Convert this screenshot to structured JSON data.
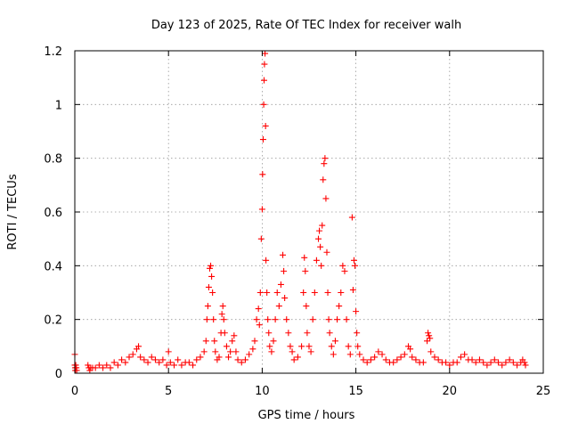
{
  "chart_data": {
    "type": "scatter",
    "title": "Day 123 of 2025, Rate Of TEC Index for receiver walh",
    "xlabel": "GPS time / hours",
    "ylabel": "ROTI / TECUs",
    "xlim": [
      0,
      25
    ],
    "ylim": [
      0,
      1.2
    ],
    "x_ticks": [
      0,
      5,
      10,
      15,
      20,
      25
    ],
    "x_tick_labels": [
      "0",
      "5",
      "10",
      "15",
      "20",
      "25"
    ],
    "y_ticks": [
      0,
      0.2,
      0.4,
      0.6,
      0.8,
      1.0,
      1.2
    ],
    "y_tick_labels": [
      "0",
      "0.2",
      "0.4",
      "0.6",
      "0.8",
      "1",
      "1.2"
    ],
    "grid": true,
    "grid_style": "dotted",
    "marker": "plus",
    "series": [
      {
        "color": "#ff0000",
        "points": [
          [
            0.0,
            0.07
          ],
          [
            0.0,
            0.03
          ],
          [
            0.02,
            0.02
          ],
          [
            0.03,
            0.01
          ],
          [
            0.05,
            0.02
          ],
          [
            0.05,
            0.03
          ],
          [
            0.08,
            0.02
          ],
          [
            0.1,
            0.01
          ],
          [
            0.7,
            0.03
          ],
          [
            0.75,
            0.02
          ],
          [
            0.8,
            0.01
          ],
          [
            0.85,
            0.02
          ],
          [
            0.95,
            0.02
          ],
          [
            1.1,
            0.02
          ],
          [
            1.3,
            0.03
          ],
          [
            1.5,
            0.02
          ],
          [
            1.7,
            0.03
          ],
          [
            1.9,
            0.02
          ],
          [
            2.1,
            0.04
          ],
          [
            2.3,
            0.03
          ],
          [
            2.5,
            0.05
          ],
          [
            2.7,
            0.04
          ],
          [
            2.9,
            0.06
          ],
          [
            3.1,
            0.07
          ],
          [
            3.3,
            0.09
          ],
          [
            3.4,
            0.1
          ],
          [
            3.5,
            0.06
          ],
          [
            3.7,
            0.05
          ],
          [
            3.9,
            0.04
          ],
          [
            4.1,
            0.06
          ],
          [
            4.3,
            0.05
          ],
          [
            4.5,
            0.04
          ],
          [
            4.7,
            0.05
          ],
          [
            4.9,
            0.03
          ],
          [
            5.0,
            0.08
          ],
          [
            5.1,
            0.04
          ],
          [
            5.3,
            0.03
          ],
          [
            5.5,
            0.05
          ],
          [
            5.7,
            0.03
          ],
          [
            5.9,
            0.04
          ],
          [
            6.1,
            0.04
          ],
          [
            6.3,
            0.03
          ],
          [
            6.5,
            0.05
          ],
          [
            6.7,
            0.06
          ],
          [
            6.9,
            0.08
          ],
          [
            7.0,
            0.12
          ],
          [
            7.05,
            0.2
          ],
          [
            7.1,
            0.25
          ],
          [
            7.15,
            0.32
          ],
          [
            7.2,
            0.39
          ],
          [
            7.25,
            0.4
          ],
          [
            7.3,
            0.36
          ],
          [
            7.35,
            0.3
          ],
          [
            7.4,
            0.2
          ],
          [
            7.45,
            0.12
          ],
          [
            7.5,
            0.08
          ],
          [
            7.6,
            0.05
          ],
          [
            7.7,
            0.06
          ],
          [
            7.8,
            0.15
          ],
          [
            7.85,
            0.22
          ],
          [
            7.9,
            0.25
          ],
          [
            7.95,
            0.2
          ],
          [
            8.0,
            0.15
          ],
          [
            8.1,
            0.1
          ],
          [
            8.2,
            0.06
          ],
          [
            8.3,
            0.08
          ],
          [
            8.4,
            0.12
          ],
          [
            8.5,
            0.14
          ],
          [
            8.6,
            0.08
          ],
          [
            8.7,
            0.05
          ],
          [
            8.9,
            0.04
          ],
          [
            9.1,
            0.05
          ],
          [
            9.3,
            0.07
          ],
          [
            9.5,
            0.09
          ],
          [
            9.6,
            0.12
          ],
          [
            9.7,
            0.2
          ],
          [
            9.8,
            0.24
          ],
          [
            9.85,
            0.18
          ],
          [
            9.9,
            0.3
          ],
          [
            9.95,
            0.5
          ],
          [
            10.0,
            0.61
          ],
          [
            10.02,
            0.74
          ],
          [
            10.05,
            0.87
          ],
          [
            10.08,
            1.0
          ],
          [
            10.1,
            1.09
          ],
          [
            10.12,
            1.15
          ],
          [
            10.15,
            1.19
          ],
          [
            10.18,
            0.92
          ],
          [
            10.2,
            0.42
          ],
          [
            10.25,
            0.3
          ],
          [
            10.3,
            0.2
          ],
          [
            10.35,
            0.15
          ],
          [
            10.4,
            0.1
          ],
          [
            10.5,
            0.08
          ],
          [
            10.6,
            0.12
          ],
          [
            10.7,
            0.2
          ],
          [
            10.8,
            0.3
          ],
          [
            10.9,
            0.25
          ],
          [
            11.0,
            0.33
          ],
          [
            11.1,
            0.44
          ],
          [
            11.15,
            0.38
          ],
          [
            11.2,
            0.28
          ],
          [
            11.3,
            0.2
          ],
          [
            11.4,
            0.15
          ],
          [
            11.5,
            0.1
          ],
          [
            11.6,
            0.08
          ],
          [
            11.7,
            0.05
          ],
          [
            11.9,
            0.06
          ],
          [
            12.1,
            0.1
          ],
          [
            12.2,
            0.3
          ],
          [
            12.25,
            0.43
          ],
          [
            12.3,
            0.38
          ],
          [
            12.35,
            0.25
          ],
          [
            12.4,
            0.15
          ],
          [
            12.5,
            0.1
          ],
          [
            12.6,
            0.08
          ],
          [
            12.7,
            0.2
          ],
          [
            12.8,
            0.3
          ],
          [
            12.9,
            0.42
          ],
          [
            13.0,
            0.5
          ],
          [
            13.05,
            0.53
          ],
          [
            13.1,
            0.47
          ],
          [
            13.15,
            0.4
          ],
          [
            13.2,
            0.55
          ],
          [
            13.25,
            0.72
          ],
          [
            13.3,
            0.78
          ],
          [
            13.35,
            0.8
          ],
          [
            13.4,
            0.65
          ],
          [
            13.45,
            0.45
          ],
          [
            13.5,
            0.3
          ],
          [
            13.55,
            0.2
          ],
          [
            13.6,
            0.15
          ],
          [
            13.7,
            0.1
          ],
          [
            13.8,
            0.07
          ],
          [
            13.9,
            0.12
          ],
          [
            14.0,
            0.2
          ],
          [
            14.1,
            0.25
          ],
          [
            14.2,
            0.3
          ],
          [
            14.3,
            0.4
          ],
          [
            14.4,
            0.38
          ],
          [
            14.5,
            0.2
          ],
          [
            14.6,
            0.1
          ],
          [
            14.7,
            0.07
          ],
          [
            14.8,
            0.58
          ],
          [
            14.85,
            0.31
          ],
          [
            14.9,
            0.42
          ],
          [
            14.95,
            0.4
          ],
          [
            15.0,
            0.23
          ],
          [
            15.05,
            0.15
          ],
          [
            15.1,
            0.1
          ],
          [
            15.2,
            0.07
          ],
          [
            15.4,
            0.05
          ],
          [
            15.6,
            0.04
          ],
          [
            15.8,
            0.05
          ],
          [
            16.0,
            0.06
          ],
          [
            16.2,
            0.08
          ],
          [
            16.4,
            0.07
          ],
          [
            16.6,
            0.05
          ],
          [
            16.8,
            0.04
          ],
          [
            17.0,
            0.04
          ],
          [
            17.2,
            0.05
          ],
          [
            17.4,
            0.06
          ],
          [
            17.6,
            0.07
          ],
          [
            17.8,
            0.1
          ],
          [
            17.9,
            0.09
          ],
          [
            18.0,
            0.06
          ],
          [
            18.2,
            0.05
          ],
          [
            18.4,
            0.04
          ],
          [
            18.6,
            0.04
          ],
          [
            18.8,
            0.12
          ],
          [
            18.85,
            0.15
          ],
          [
            18.9,
            0.14
          ],
          [
            18.95,
            0.13
          ],
          [
            19.0,
            0.08
          ],
          [
            19.2,
            0.06
          ],
          [
            19.4,
            0.05
          ],
          [
            19.6,
            0.04
          ],
          [
            19.8,
            0.04
          ],
          [
            20.0,
            0.03
          ],
          [
            20.2,
            0.04
          ],
          [
            20.4,
            0.04
          ],
          [
            20.6,
            0.06
          ],
          [
            20.8,
            0.07
          ],
          [
            21.0,
            0.05
          ],
          [
            21.2,
            0.05
          ],
          [
            21.4,
            0.04
          ],
          [
            21.6,
            0.05
          ],
          [
            21.8,
            0.04
          ],
          [
            22.0,
            0.03
          ],
          [
            22.2,
            0.04
          ],
          [
            22.4,
            0.05
          ],
          [
            22.6,
            0.04
          ],
          [
            22.8,
            0.03
          ],
          [
            23.0,
            0.04
          ],
          [
            23.2,
            0.05
          ],
          [
            23.4,
            0.04
          ],
          [
            23.6,
            0.03
          ],
          [
            23.8,
            0.04
          ],
          [
            23.9,
            0.05
          ],
          [
            24.0,
            0.04
          ],
          [
            24.05,
            0.03
          ]
        ]
      }
    ]
  }
}
